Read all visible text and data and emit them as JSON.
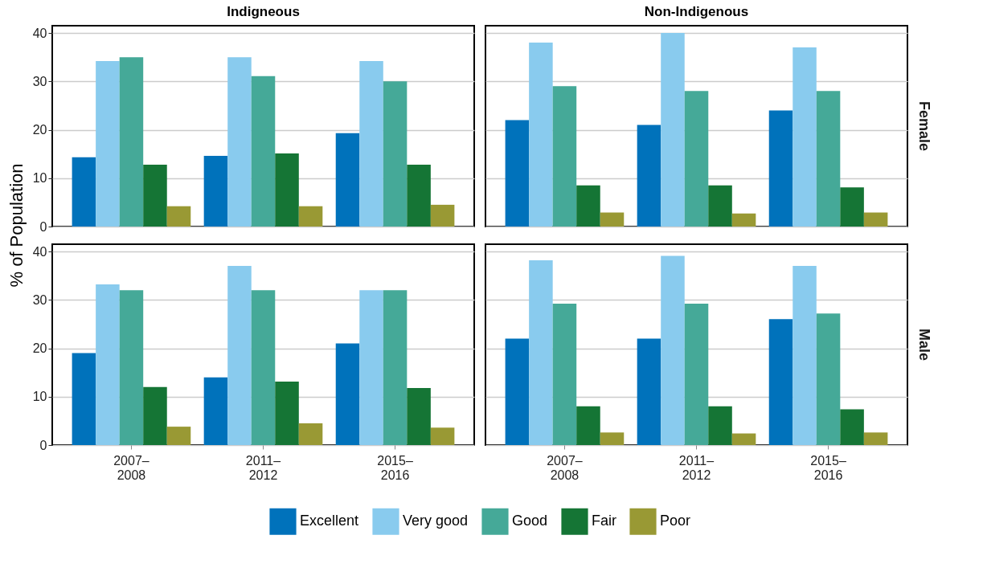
{
  "chart_data": [
    {
      "type": "bar",
      "title": "Indigneous",
      "ylabel": "% of Population",
      "categories": [
        "2007–\n2008",
        "2011–\n2012",
        "2015–\n2016"
      ],
      "ylim": [
        0,
        41.5
      ],
      "yticks": [
        0,
        10,
        20,
        30,
        40
      ],
      "grid": "y",
      "tick_labels": "y",
      "legend": "bottom",
      "series": [
        {
          "name": "Excellent",
          "color": "#0072bb",
          "values": [
            14.3,
            14.6,
            19.3
          ]
        },
        {
          "name": "Very good",
          "color": "#89cbee",
          "values": [
            34.2,
            35,
            34.2
          ]
        },
        {
          "name": "Good",
          "color": "#45a998",
          "values": [
            35,
            31.1,
            30
          ]
        },
        {
          "name": "Fair",
          "color": "#157535",
          "values": [
            12.8,
            15.1,
            12.8
          ]
        },
        {
          "name": "Poor",
          "color": "#999934",
          "values": [
            4.2,
            4.2,
            4.5
          ]
        }
      ]
    },
    {
      "type": "bar",
      "title": "Non-Indigenous",
      "y2label": "Female",
      "categories": [
        "2007–\n2008",
        "2011–\n2012",
        "2015–\n2016"
      ],
      "ylim": [
        0,
        41.5
      ],
      "yticks": [
        0,
        10,
        20,
        30,
        40
      ],
      "grid": "y",
      "tick_labels": false,
      "legend": "bottom",
      "series": [
        {
          "name": "Excellent",
          "color": "#0072bb",
          "values": [
            22,
            21,
            24
          ]
        },
        {
          "name": "Very good",
          "color": "#89cbee",
          "values": [
            38,
            40,
            37
          ]
        },
        {
          "name": "Good",
          "color": "#45a998",
          "values": [
            29,
            28,
            28
          ]
        },
        {
          "name": "Fair",
          "color": "#157535",
          "values": [
            8.5,
            8.5,
            8.1
          ]
        },
        {
          "name": "Poor",
          "color": "#999934",
          "values": [
            2.9,
            2.7,
            2.9
          ]
        }
      ]
    },
    {
      "type": "bar",
      "categories": [
        "2007–\n2008",
        "2011–\n2012",
        "2015–\n2016"
      ],
      "ylim": [
        0,
        41.5
      ],
      "yticks": [
        0,
        10,
        20,
        30,
        40
      ],
      "grid": "y",
      "legend": "bottom",
      "series": [
        {
          "name": "Excellent",
          "color": "#0072bb",
          "values": [
            19,
            14,
            21
          ]
        },
        {
          "name": "Very good",
          "color": "#89cbee",
          "values": [
            33.2,
            37,
            32
          ]
        },
        {
          "name": "Good",
          "color": "#45a998",
          "values": [
            32,
            32,
            32
          ]
        },
        {
          "name": "Fair",
          "color": "#157535",
          "values": [
            12,
            13.1,
            11.8
          ]
        },
        {
          "name": "Poor",
          "color": "#999934",
          "values": [
            3.8,
            4.5,
            3.6
          ]
        }
      ]
    },
    {
      "type": "bar",
      "y2label": "Male",
      "categories": [
        "2007–\n2008",
        "2011–\n2012",
        "2015–\n2016"
      ],
      "ylim": [
        0,
        41.5
      ],
      "yticks": [
        0,
        10,
        20,
        30,
        40
      ],
      "grid": "y",
      "tick_labels": "x",
      "legend": "bottom",
      "series": [
        {
          "name": "Excellent",
          "color": "#0072bb",
          "values": [
            22,
            22,
            26
          ]
        },
        {
          "name": "Very good",
          "color": "#89cbee",
          "values": [
            38.2,
            39.1,
            37
          ]
        },
        {
          "name": "Good",
          "color": "#45a998",
          "values": [
            29.2,
            29.2,
            27.2
          ]
        },
        {
          "name": "Fair",
          "color": "#157535",
          "values": [
            8,
            8,
            7.4
          ]
        },
        {
          "name": "Poor",
          "color": "#999934",
          "values": [
            2.6,
            2.4,
            2.6
          ]
        }
      ]
    }
  ]
}
